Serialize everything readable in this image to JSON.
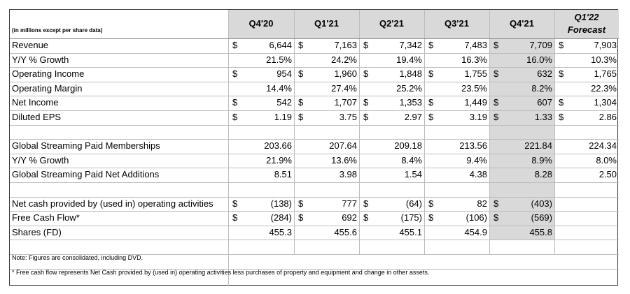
{
  "units_note": "(in millions except per share data)",
  "periods": [
    {
      "label": "Q4'20"
    },
    {
      "label": "Q1'21"
    },
    {
      "label": "Q2'21"
    },
    {
      "label": "Q3'21"
    },
    {
      "label": "Q4'21"
    },
    {
      "label_line1": "Q1'22",
      "label_line2": "Forecast"
    }
  ],
  "currency_symbol": "$",
  "rows": [
    {
      "label": "Revenue",
      "dollar": [
        true,
        true,
        true,
        true,
        true,
        true
      ],
      "values": [
        "6,644",
        "7,163",
        "7,342",
        "7,483",
        "7,709",
        "7,903"
      ]
    },
    {
      "label": " Y/Y % Growth",
      "dollar": [
        false,
        false,
        false,
        false,
        false,
        false
      ],
      "values": [
        "21.5%",
        "24.2%",
        "19.4%",
        "16.3%",
        "16.0%",
        "10.3%"
      ]
    },
    {
      "label": "Operating Income",
      "dollar": [
        true,
        true,
        true,
        true,
        true,
        true
      ],
      "values": [
        "954",
        "1,960",
        "1,848",
        "1,755",
        "632",
        "1,765"
      ]
    },
    {
      "label": "Operating Margin",
      "dollar": [
        false,
        false,
        false,
        false,
        false,
        false
      ],
      "values": [
        "14.4%",
        "27.4%",
        "25.2%",
        "23.5%",
        "8.2%",
        "22.3%"
      ]
    },
    {
      "label": "Net Income",
      "dollar": [
        true,
        true,
        true,
        true,
        true,
        true
      ],
      "values": [
        "542",
        "1,707",
        "1,353",
        "1,449",
        "607",
        "1,304"
      ]
    },
    {
      "label": "Diluted EPS",
      "dollar": [
        true,
        true,
        true,
        true,
        true,
        true
      ],
      "values": [
        "1.19",
        "3.75",
        "2.97",
        "3.19",
        "1.33",
        "2.86"
      ]
    },
    {
      "label": "",
      "dollar": [
        false,
        false,
        false,
        false,
        false,
        false
      ],
      "values": [
        "",
        "",
        "",
        "",
        "",
        ""
      ]
    },
    {
      "label": "Global Streaming Paid Memberships",
      "dollar": [
        false,
        false,
        false,
        false,
        false,
        false
      ],
      "values": [
        "203.66",
        "207.64",
        "209.18",
        "213.56",
        "221.84",
        "224.34"
      ]
    },
    {
      "label": " Y/Y % Growth",
      "dollar": [
        false,
        false,
        false,
        false,
        false,
        false
      ],
      "values": [
        "21.9%",
        "13.6%",
        "8.4%",
        "9.4%",
        "8.9%",
        "8.0%"
      ]
    },
    {
      "label": "Global Streaming Paid Net Additions",
      "dollar": [
        false,
        false,
        false,
        false,
        false,
        false
      ],
      "values": [
        "8.51",
        "3.98",
        "1.54",
        "4.38",
        "8.28",
        "2.50"
      ]
    },
    {
      "label": "",
      "dollar": [
        false,
        false,
        false,
        false,
        false,
        false
      ],
      "values": [
        "",
        "",
        "",
        "",
        "",
        ""
      ]
    },
    {
      "label": "Net cash provided by (used in) operating activities",
      "dollar": [
        true,
        true,
        true,
        true,
        true,
        false
      ],
      "values": [
        "(138)",
        "777",
        "(64)",
        "82",
        "(403)",
        ""
      ]
    },
    {
      "label": "Free Cash Flow*",
      "dollar": [
        true,
        true,
        true,
        true,
        true,
        false
      ],
      "values": [
        "(284)",
        "692",
        "(175)",
        "(106)",
        "(569)",
        ""
      ]
    },
    {
      "label": "Shares (FD)",
      "dollar": [
        false,
        false,
        false,
        false,
        false,
        false
      ],
      "values": [
        "455.3",
        "455.6",
        "455.1",
        "454.9",
        "455.8",
        ""
      ]
    }
  ],
  "notes": [
    "Note: Figures are consolidated, including DVD.",
    "* Free cash flow represents Net Cash provided by (used in) operating activities less purchases of property and equipment and change in other assets."
  ]
}
